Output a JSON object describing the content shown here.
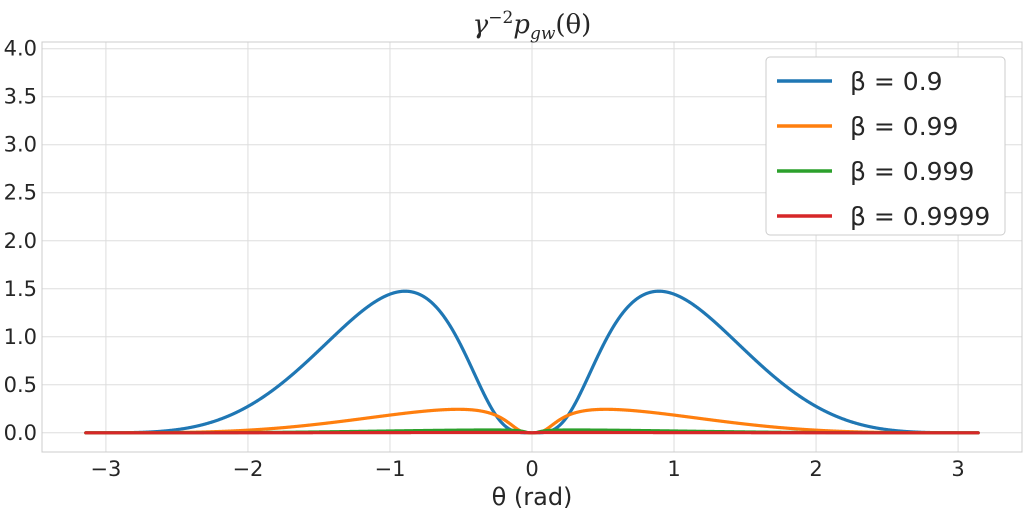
{
  "chart_data": {
    "type": "line",
    "title": "γ⁻²p_gw(θ)",
    "title_main": "γ",
    "title_sup": "−2",
    "title_p": "p",
    "title_sub": "gw",
    "title_tail": "(θ)",
    "xlabel": "θ (rad)",
    "ylabel": "",
    "xlim": [
      -3.45,
      3.45
    ],
    "ylim": [
      -0.2,
      4.07
    ],
    "x_ticks": [
      -3,
      -2,
      -1,
      0,
      1,
      2,
      3
    ],
    "x_tick_labels": [
      "−3",
      "−2",
      "−1",
      "0",
      "1",
      "2",
      "3"
    ],
    "y_ticks": [
      0.0,
      0.5,
      1.0,
      1.5,
      2.0,
      2.5,
      3.0,
      3.5,
      4.0
    ],
    "y_tick_labels": [
      "0.0",
      "0.5",
      "1.0",
      "1.5",
      "2.0",
      "2.5",
      "3.0",
      "3.5",
      "4.0"
    ],
    "grid": true,
    "legend_position": "top-right",
    "x_range": [
      -3.14159,
      3.14159
    ],
    "series": [
      {
        "name": "β = 0.9",
        "label": "β = 0.9",
        "beta": 0.9,
        "color": "#1f77b4"
      },
      {
        "name": "β = 0.99",
        "label": "β = 0.99",
        "beta": 0.99,
        "color": "#ff7f0e"
      },
      {
        "name": "β = 0.999",
        "label": "β = 0.999",
        "beta": 0.999,
        "color": "#2ca02c"
      },
      {
        "name": "β = 0.9999",
        "label": "β = 0.9999",
        "beta": 0.9999,
        "color": "#d62728"
      }
    ]
  }
}
